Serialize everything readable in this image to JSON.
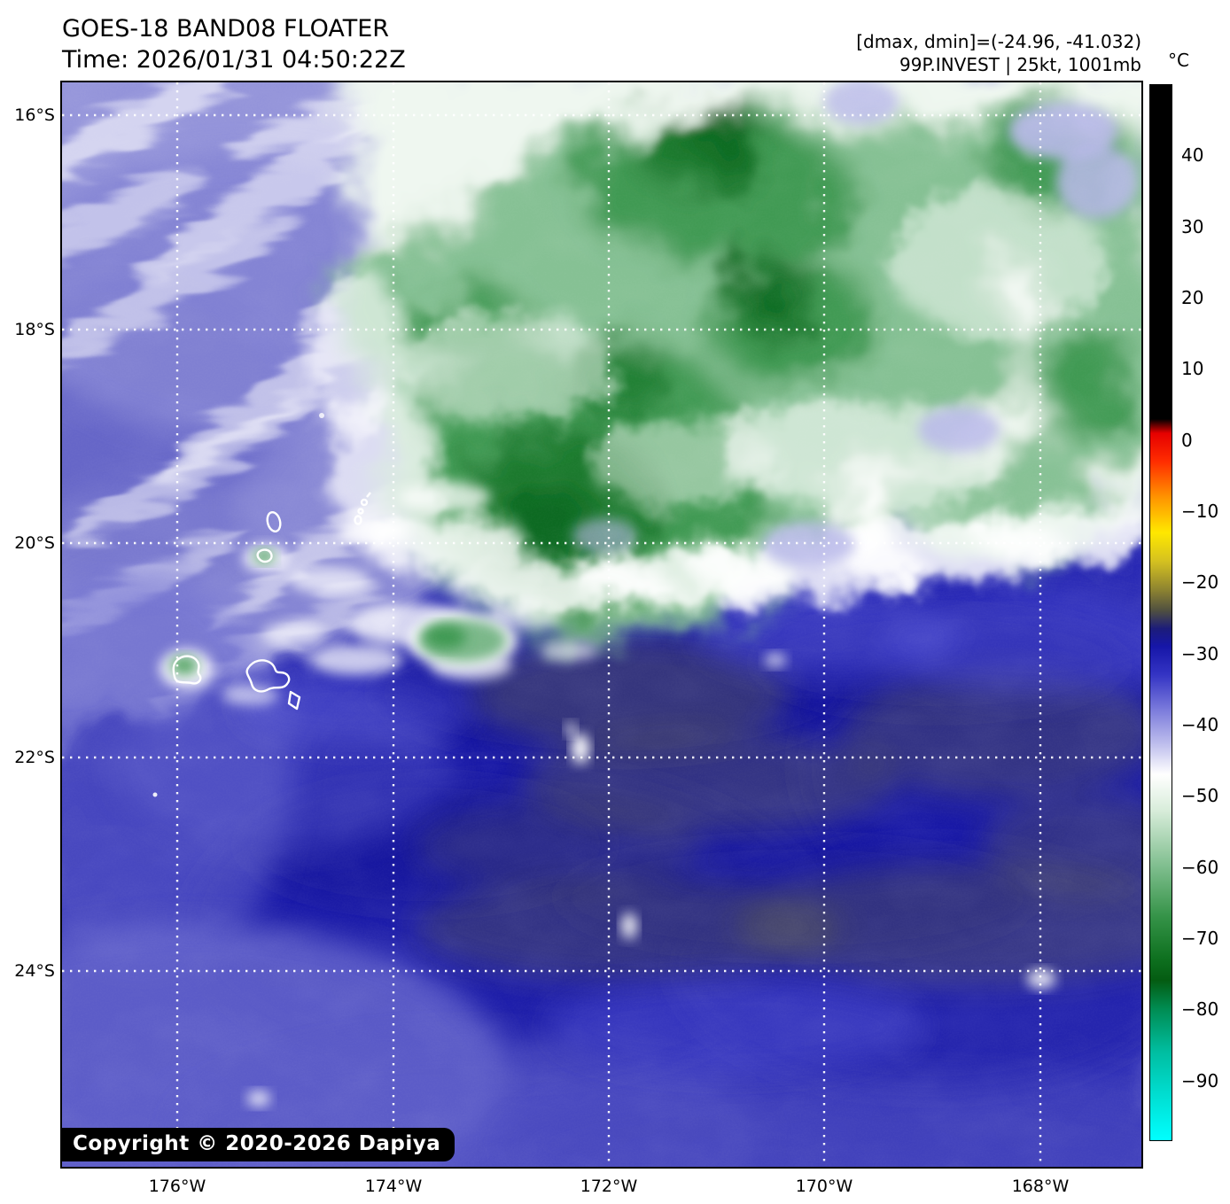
{
  "header": {
    "title": "GOES-18 BAND08 FLOATER",
    "time": "Time: 2026/01/31 04:50:22Z",
    "annotation_line1": "[dmax, dmin]=(-24.96, -41.032)",
    "annotation_line2": "99P.INVEST | 25kt, 1001mb"
  },
  "map": {
    "lat_labels": [
      "16°S",
      "18°S",
      "20°S",
      "22°S",
      "24°S"
    ],
    "lon_labels": [
      "176°W",
      "174°W",
      "172°W",
      "170°W",
      "168°W"
    ],
    "copyright": "Copyright © 2020-2026 Dapiya"
  },
  "colorbar": {
    "unit": "°C",
    "vmax": 50,
    "vmin": -98.5,
    "tick_values": [
      40,
      30,
      20,
      10,
      0,
      -10,
      -20,
      -30,
      -40,
      -50,
      -60,
      -70,
      -80,
      -90
    ],
    "tick_labels": [
      "40",
      "30",
      "20",
      "10",
      "0",
      "−10",
      "−20",
      "−30",
      "−40",
      "−50",
      "−60",
      "−70",
      "−80",
      "−90"
    ],
    "gradient": [
      {
        "v": 50,
        "color": "#000000"
      },
      {
        "v": 3,
        "color": "#000000"
      },
      {
        "v": 1,
        "color": "#e60000"
      },
      {
        "v": -3,
        "color": "#ff2d00"
      },
      {
        "v": -8,
        "color": "#ff9400"
      },
      {
        "v": -13,
        "color": "#ffe800"
      },
      {
        "v": -17,
        "color": "#d5c120"
      },
      {
        "v": -21,
        "color": "#8e8430"
      },
      {
        "v": -24,
        "color": "#4f4f40"
      },
      {
        "v": -26.5,
        "color": "#1c1c7a"
      },
      {
        "v": -29,
        "color": "#1616a8"
      },
      {
        "v": -33,
        "color": "#3434c4"
      },
      {
        "v": -38,
        "color": "#7c7cdc"
      },
      {
        "v": -43,
        "color": "#c2c2ee"
      },
      {
        "v": -47,
        "color": "#ffffff"
      },
      {
        "v": -52,
        "color": "#d9eddb"
      },
      {
        "v": -60,
        "color": "#7fbe8e"
      },
      {
        "v": -67,
        "color": "#359348"
      },
      {
        "v": -73,
        "color": "#0e701f"
      },
      {
        "v": -76,
        "color": "#045c12"
      },
      {
        "v": -80,
        "color": "#008c52"
      },
      {
        "v": -86,
        "color": "#00bda0"
      },
      {
        "v": -92,
        "color": "#00ddd0"
      },
      {
        "v": -98.5,
        "color": "#00ffff"
      }
    ]
  }
}
